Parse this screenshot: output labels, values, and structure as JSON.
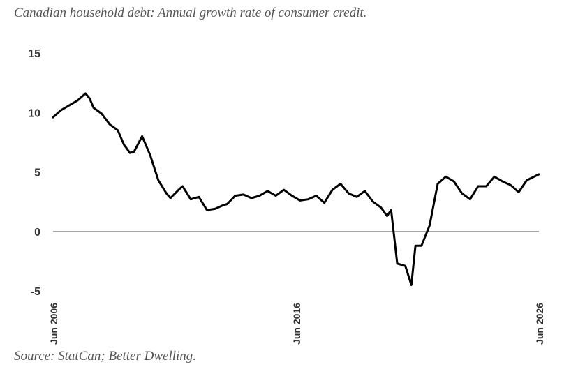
{
  "title": "Canadian household debt: Annual growth rate of consumer credit.",
  "source": "Source: StatCan; Better Dwelling.",
  "chart_data": {
    "type": "line",
    "title": "Canadian household debt: Annual growth rate of consumer credit.",
    "xlabel": "",
    "ylabel": "",
    "ylim": [
      -5,
      15
    ],
    "xlim": [
      "2006-06",
      "2026-06"
    ],
    "y_ticks": [
      "15",
      "10",
      "5",
      "0",
      "-5"
    ],
    "x_ticks": [
      "Jun 2006",
      "Jun 2016",
      "Jun 2026"
    ],
    "grid": false,
    "zero_line": true,
    "line_color": "#000000",
    "zero_line_color": "#999999",
    "series": [
      {
        "x": [
          "2006-06",
          "2006-10",
          "2007-02",
          "2007-06",
          "2007-10",
          "2007-12",
          "2008-02",
          "2008-06",
          "2008-10",
          "2009-02",
          "2009-05",
          "2009-08",
          "2009-10",
          "2010-02",
          "2010-06",
          "2010-10",
          "2011-02",
          "2011-04",
          "2011-08",
          "2011-10",
          "2012-02",
          "2012-06",
          "2012-10",
          "2013-02",
          "2013-06",
          "2013-08",
          "2013-12",
          "2014-04",
          "2014-08",
          "2014-12",
          "2015-04",
          "2015-08",
          "2015-12",
          "2016-04",
          "2016-08",
          "2016-12",
          "2017-04",
          "2017-08",
          "2017-12",
          "2018-04",
          "2018-08",
          "2018-12",
          "2019-04",
          "2019-08",
          "2019-12",
          "2020-03",
          "2020-05",
          "2020-08",
          "2020-12",
          "2021-03",
          "2021-05",
          "2021-08",
          "2021-12",
          "2022-04",
          "2022-08",
          "2022-12",
          "2023-04",
          "2023-08",
          "2023-12",
          "2024-04",
          "2024-08",
          "2024-12",
          "2025-04",
          "2025-08",
          "2025-12",
          "2026-06"
        ],
        "y": [
          9.6,
          10.2,
          10.6,
          11.0,
          11.6,
          11.2,
          10.4,
          9.9,
          9.0,
          8.5,
          7.3,
          6.6,
          6.7,
          8.0,
          6.4,
          4.3,
          3.2,
          2.8,
          3.5,
          3.8,
          2.7,
          2.9,
          1.8,
          1.9,
          2.2,
          2.3,
          3.0,
          3.1,
          2.8,
          3.0,
          3.4,
          3.0,
          3.5,
          3.0,
          2.6,
          2.7,
          3.0,
          2.4,
          3.5,
          4.0,
          3.2,
          2.9,
          3.4,
          2.5,
          2.0,
          1.3,
          1.8,
          -2.7,
          -2.9,
          -4.5,
          -1.2,
          -1.2,
          0.5,
          4.0,
          4.6,
          4.2,
          3.2,
          2.7,
          3.8,
          3.8,
          4.6,
          4.2,
          3.9,
          3.3,
          4.3,
          4.8
        ]
      }
    ]
  }
}
